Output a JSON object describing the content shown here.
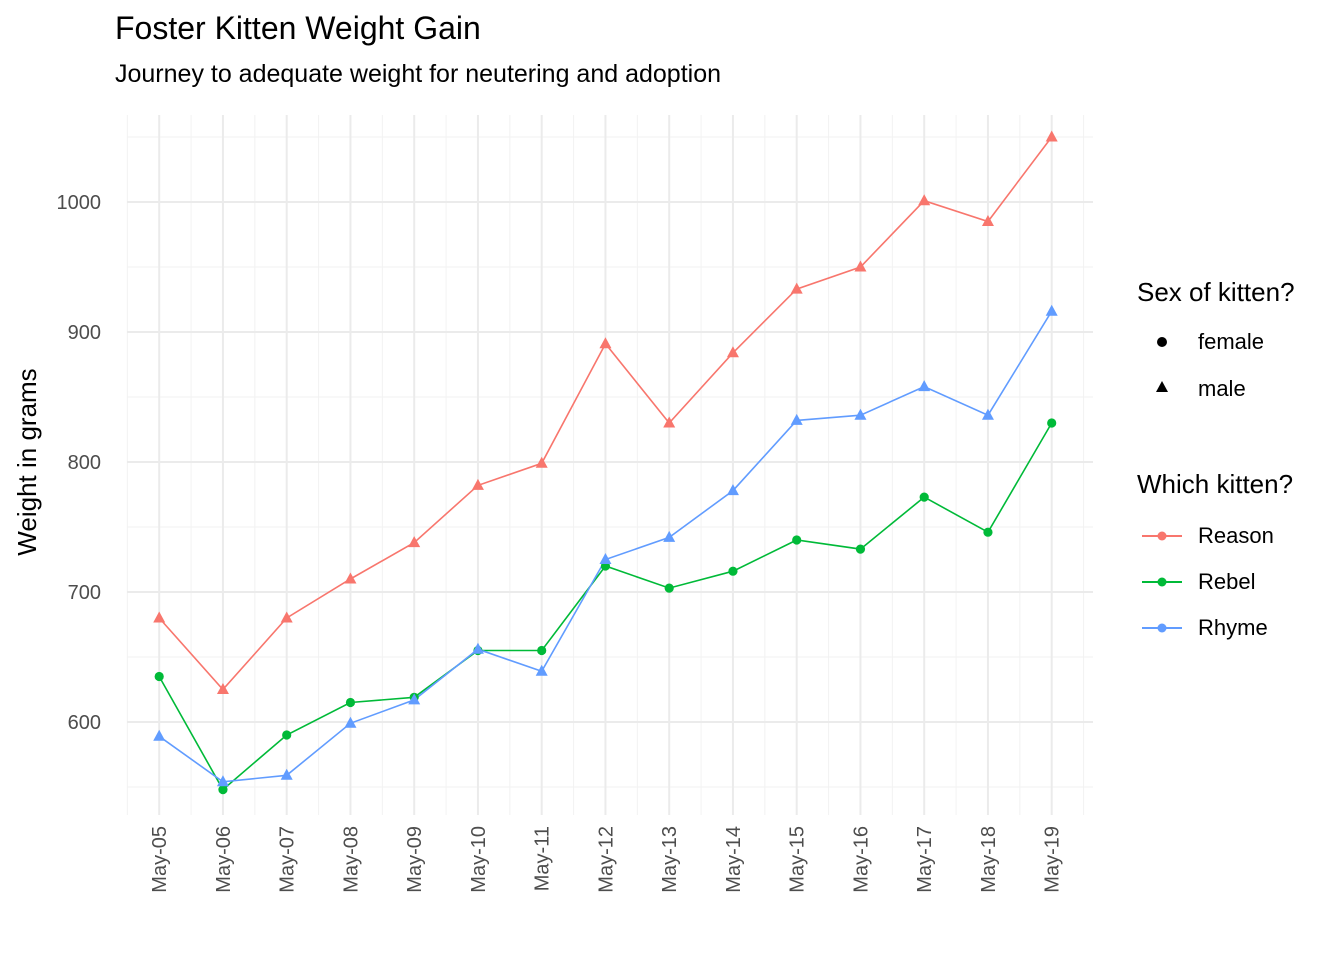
{
  "title": "Foster Kitten Weight Gain",
  "subtitle": "Journey to adequate weight for neutering and adoption",
  "legend": {
    "shape_title": "Sex of kitten?",
    "shape_items": [
      {
        "label": "female",
        "shape": "circle"
      },
      {
        "label": "male",
        "shape": "triangle"
      }
    ],
    "color_title": "Which kitten?",
    "color_items": [
      {
        "label": "Reason",
        "color": "#F8766D"
      },
      {
        "label": "Rebel",
        "color": "#00BA38"
      },
      {
        "label": "Rhyme",
        "color": "#619CFF"
      }
    ]
  },
  "chart_data": {
    "type": "line",
    "title": "Foster Kitten Weight Gain",
    "subtitle": "Journey to adequate weight for neutering and adoption",
    "xlabel": "",
    "ylabel": "Weight in grams",
    "categories": [
      "May-05",
      "May-06",
      "May-07",
      "May-08",
      "May-09",
      "May-10",
      "May-11",
      "May-12",
      "May-13",
      "May-14",
      "May-15",
      "May-16",
      "May-17",
      "May-18",
      "May-19"
    ],
    "ylim": [
      525,
      1072
    ],
    "yticks": [
      600,
      700,
      800,
      900,
      1000
    ],
    "grid": true,
    "legend_position": "right",
    "series": [
      {
        "name": "Reason",
        "color": "#F8766D",
        "shape": "triangle",
        "values": [
          680,
          625,
          680,
          710,
          738,
          782,
          799,
          891,
          830,
          884,
          933,
          950,
          1001,
          985,
          1050
        ]
      },
      {
        "name": "Rebel",
        "color": "#00BA38",
        "shape": "circle",
        "values": [
          635,
          548,
          590,
          615,
          619,
          655,
          655,
          720,
          703,
          716,
          740,
          733,
          773,
          746,
          830
        ]
      },
      {
        "name": "Rhyme",
        "color": "#619CFF",
        "shape": "triangle",
        "values": [
          589,
          554,
          559,
          599,
          617,
          656,
          639,
          725,
          742,
          778,
          832,
          836,
          858,
          836,
          916
        ]
      }
    ]
  }
}
